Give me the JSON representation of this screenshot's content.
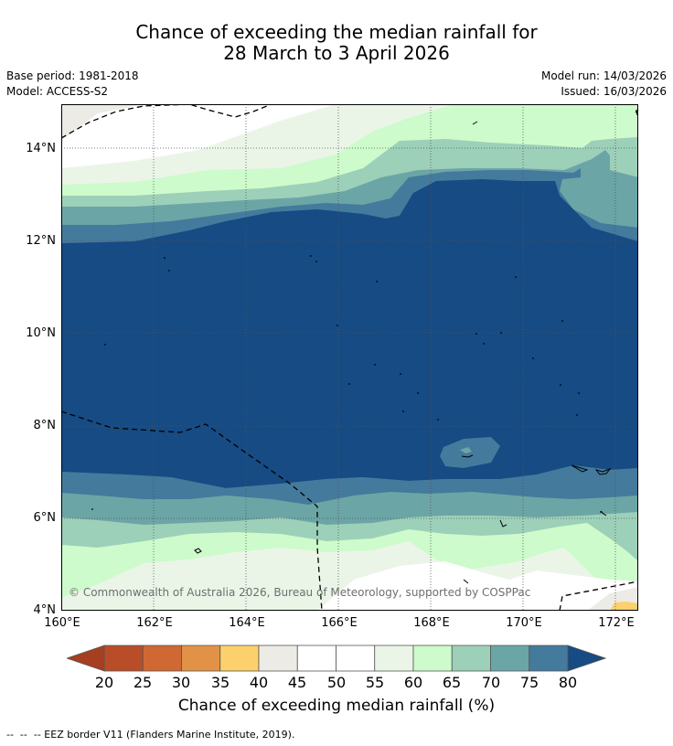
{
  "title": {
    "line1": "Chance of exceeding the median rainfall for",
    "line2": "28 March to 3 April 2026"
  },
  "meta": {
    "base_period": "Base period: 1981-2018",
    "model": "Model: ACCESS-S2",
    "model_run": "Model run: 14/03/2026",
    "issued": "Issued: 16/03/2026"
  },
  "map": {
    "lat_labels": [
      "14°N",
      "12°N",
      "10°N",
      "8°N",
      "6°N",
      "4°N"
    ],
    "lon_labels": [
      "160°E",
      "162°E",
      "164°E",
      "166°E",
      "168°E",
      "170°E",
      "172°E"
    ],
    "copyright": "© Commonwealth of Australia 2026, Bureau of Meteorology, supported by COSPPac",
    "colors": {
      "c20": "#a63f22",
      "c25": "#b84d28",
      "c30": "#cf6833",
      "c35": "#e29247",
      "c40": "#fcd06c",
      "c45": "#ecebe6",
      "c55": "#ffffff",
      "c60": "#eaf5e8",
      "c65": "#cdfbcb",
      "c70": "#9dd0b9",
      "c75": "#6ca5a6",
      "c80": "#447a9c",
      "c80plus": "#164b84"
    }
  },
  "colorbar": {
    "ticks": [
      "20",
      "25",
      "30",
      "35",
      "40",
      "45",
      "50",
      "55",
      "60",
      "65",
      "70",
      "75",
      "80"
    ],
    "colors": [
      "#a63f22",
      "#b84d28",
      "#cf6833",
      "#e29247",
      "#fcd06c",
      "#ecebe6",
      "#ffffff",
      "#ffffff",
      "#eaf5e8",
      "#cdfbcb",
      "#9dd0b9",
      "#6ca5a6",
      "#447a9c",
      "#164b84"
    ],
    "label": "Chance of exceeding median rainfall (%)"
  },
  "footnote": "--  --  -- EEZ border V11 (Flanders Marine Institute, 2019)."
}
